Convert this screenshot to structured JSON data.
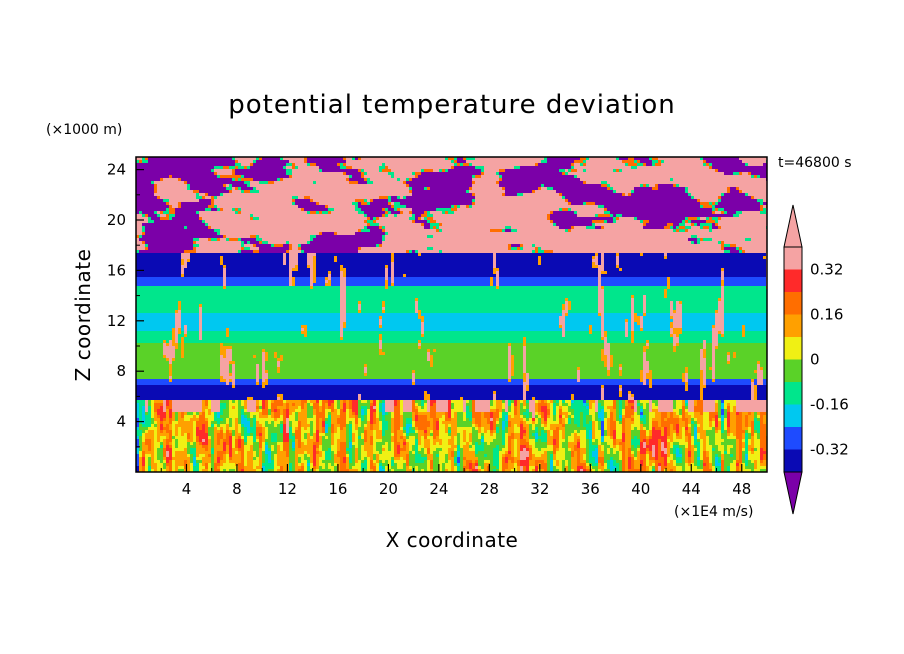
{
  "chart_data": {
    "type": "heatmap",
    "title": "potential temperature deviation",
    "xlabel": "X coordinate",
    "ylabel": "Z coordinate",
    "x_unit": "(×1E4 m/s)",
    "y_unit": "(×1000 m)",
    "time_label": "t=46800 s",
    "xlim": [
      0,
      50
    ],
    "ylim": [
      0,
      25
    ],
    "x_ticks": [
      "4",
      "8",
      "12",
      "16",
      "20",
      "24",
      "28",
      "32",
      "36",
      "40",
      "44",
      "48"
    ],
    "y_ticks": [
      "4",
      "8",
      "12",
      "16",
      "20",
      "24"
    ],
    "colorbar": {
      "levels": [
        -0.4,
        -0.32,
        -0.24,
        -0.16,
        -0.08,
        0,
        0.08,
        0.16,
        0.24,
        0.32,
        0.4
      ],
      "tick_labels": [
        "0.32",
        "0.16",
        "0",
        "-0.16",
        "-0.32"
      ],
      "tick_values": [
        0.32,
        0.16,
        0,
        -0.16,
        -0.32
      ],
      "colors_bottom_to_top": [
        "#7b00a8",
        "#0a0ab4",
        "#1e4bff",
        "#00c8f0",
        "#00e68c",
        "#5ad228",
        "#f0f014",
        "#ffa000",
        "#ff6e00",
        "#ff2a2a",
        "#f5a3a3"
      ],
      "extend": "both"
    },
    "layers": [
      {
        "z_range": [
          17.5,
          25
        ],
        "pattern": "mixed",
        "dominant": [
          -0.4,
          0.4
        ]
      },
      {
        "z_range": [
          15.5,
          17.5
        ],
        "pattern": "band",
        "value": -0.4
      },
      {
        "z_range": [
          14.8,
          15.5
        ],
        "pattern": "band",
        "value": -0.32
      },
      {
        "z_range": [
          13.5,
          14.8
        ],
        "pattern": "band",
        "value": -0.16
      },
      {
        "z_range": [
          12.6,
          13.5
        ],
        "pattern": "band",
        "value": -0.12
      },
      {
        "z_range": [
          11.2,
          12.6
        ],
        "pattern": "band",
        "value": -0.2
      },
      {
        "z_range": [
          10.3,
          11.2
        ],
        "pattern": "band",
        "value": -0.12
      },
      {
        "z_range": [
          7.4,
          10.3
        ],
        "pattern": "band",
        "value": -0.04
      },
      {
        "z_range": [
          6.8,
          7.4
        ],
        "pattern": "band",
        "value": -0.32
      },
      {
        "z_range": [
          5.6,
          6.8
        ],
        "pattern": "band",
        "value": -0.4
      },
      {
        "z_range": [
          0,
          5.6
        ],
        "pattern": "turbulent",
        "range": [
          -0.32,
          0.4
        ]
      }
    ]
  }
}
